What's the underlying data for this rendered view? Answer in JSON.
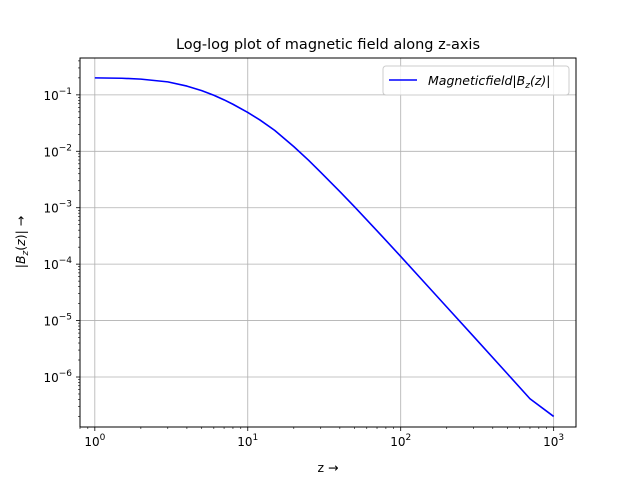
{
  "chart_data": {
    "type": "line",
    "title": "Log-log plot of magnetic field along z-axis",
    "xlabel": "z →",
    "ylabel": "|B_z(z)| →",
    "xscale": "log",
    "yscale": "log",
    "xlim": [
      0.8,
      1400
    ],
    "ylim": [
      1.3e-07,
      0.45
    ],
    "grid": true,
    "legend_position": "top-right",
    "x_ticks": [
      {
        "value": 1,
        "base": "10",
        "exp": "0"
      },
      {
        "value": 10,
        "base": "10",
        "exp": "1"
      },
      {
        "value": 100,
        "base": "10",
        "exp": "2"
      },
      {
        "value": 1000,
        "base": "10",
        "exp": "3"
      }
    ],
    "y_ticks": [
      {
        "value": 0.1,
        "base": "10",
        "exp": "−1"
      },
      {
        "value": 0.01,
        "base": "10",
        "exp": "−2"
      },
      {
        "value": 0.001,
        "base": "10",
        "exp": "−3"
      },
      {
        "value": 0.0001,
        "base": "10",
        "exp": "−4"
      },
      {
        "value": 1e-05,
        "base": "10",
        "exp": "−5"
      },
      {
        "value": 1e-06,
        "base": "10",
        "exp": "−6"
      }
    ],
    "series": [
      {
        "name": "Magneticfield|B_z(z)|",
        "color": "#0000ff",
        "x": [
          1,
          1.5,
          2,
          3,
          4,
          5,
          6,
          7,
          8,
          10,
          12,
          15,
          20,
          25,
          30,
          40,
          50,
          70,
          100,
          150,
          200,
          300,
          500,
          700,
          1000
        ],
        "y": [
          0.2,
          0.197,
          0.19,
          0.17,
          0.143,
          0.119,
          0.0985,
          0.0816,
          0.0682,
          0.0488,
          0.0359,
          0.0235,
          0.0121,
          0.00691,
          0.00425,
          0.00193,
          0.00103,
          0.00039,
          0.000137,
          4.1e-05,
          1.74e-05,
          5.2e-06,
          1.13e-06,
          4.12e-07,
          2e-07
        ]
      }
    ]
  }
}
